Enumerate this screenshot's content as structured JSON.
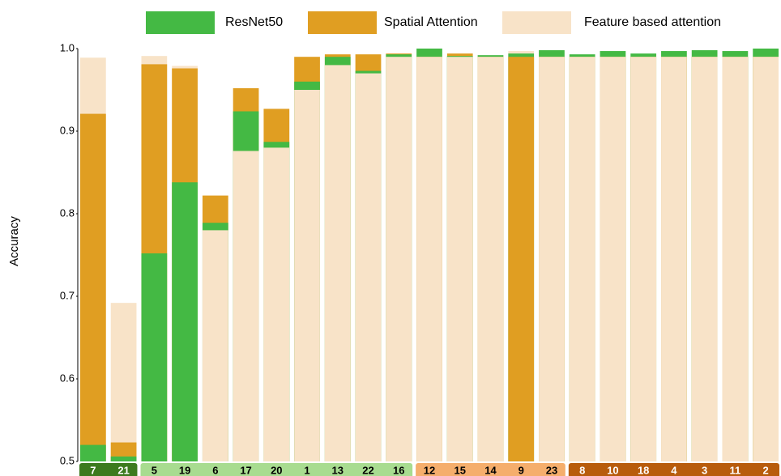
{
  "chart_data": {
    "type": "overlapping_bar",
    "y_label": "Accuracy",
    "categories": [
      "7",
      "21",
      "5",
      "19",
      "6",
      "17",
      "20",
      "1",
      "13",
      "22",
      "16",
      "12",
      "15",
      "14",
      "9",
      "23",
      "8",
      "10",
      "18",
      "4",
      "3",
      "11",
      "2"
    ],
    "category_colors": [
      "#3c7a1e",
      "#3c7a1e",
      "#a8dc90",
      "#a8dc90",
      "#a8dc90",
      "#a8dc90",
      "#a8dc90",
      "#a8dc90",
      "#a8dc90",
      "#a8dc90",
      "#a8dc90",
      "#f5ae6c",
      "#f5ae6c",
      "#f5ae6c",
      "#f5ae6c",
      "#f5ae6c",
      "#b85c0c",
      "#b85c0c",
      "#b85c0c",
      "#b85c0c",
      "#b85c0c",
      "#b85c0c",
      "#b85c0c"
    ],
    "series": [
      {
        "name": "ResNet50",
        "color": "#44b944",
        "values": [
          0.52,
          0.506,
          0.752,
          0.838,
          0.789,
          0.924,
          0.887,
          0.96,
          0.99,
          0.973,
          0.993,
          1.0,
          0.991,
          0.992,
          0.994,
          0.998,
          0.993,
          0.997,
          0.994,
          0.997,
          0.998,
          0.997,
          1.0
        ]
      },
      {
        "name": "Spatial Attention",
        "color": "#e09e22",
        "values": [
          0.921,
          0.523,
          0.981,
          0.976,
          0.822,
          0.952,
          0.927,
          0.99,
          0.993,
          0.993,
          0.994,
          0.99,
          0.994,
          0.99,
          0.99,
          0.99,
          0.99,
          0.99,
          0.99,
          0.99,
          0.99,
          0.99,
          0.99
        ]
      },
      {
        "name": "Feature based attention",
        "color": "#f8e3c8",
        "values": [
          0.989,
          0.692,
          0.991,
          0.979,
          0.78,
          0.876,
          0.88,
          0.95,
          0.98,
          0.97,
          0.99,
          0.99,
          0.99,
          0.99,
          0.997,
          0.99,
          0.99,
          0.99,
          0.99,
          0.99,
          0.99,
          0.99,
          0.99
        ]
      }
    ],
    "ylim": [
      0.5,
      1.0
    ],
    "yticks": [
      0.5,
      0.6,
      0.7,
      0.8,
      0.9,
      {
        "value": 1.0,
        "label": "1.0"
      }
    ]
  }
}
